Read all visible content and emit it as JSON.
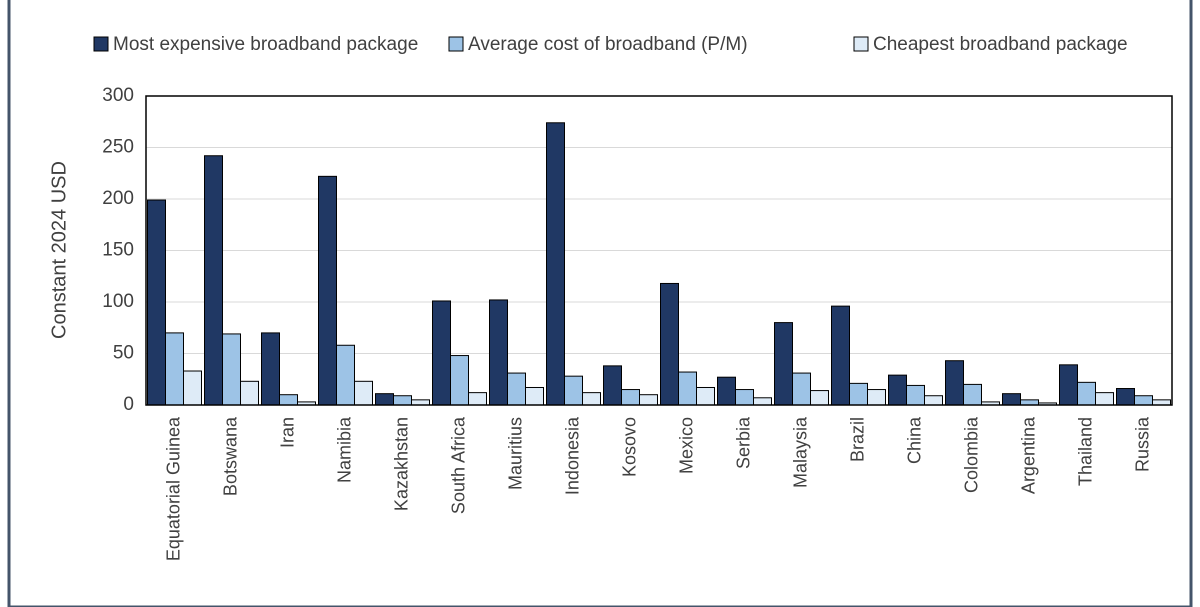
{
  "chart_data": {
    "type": "bar",
    "y_label": "Constant 2024 USD",
    "categories": [
      "Equatorial Guinea",
      "Botswana",
      "Iran",
      "Namibia",
      "Kazakhstan",
      "South Africa",
      "Mauritius",
      "Indonesia",
      "Kosovo",
      "Mexico",
      "Serbia",
      "Malaysia",
      "Brazil",
      "China",
      "Colombia",
      "Argentina",
      "Thailand",
      "Russia"
    ],
    "series": [
      {
        "name": "Most expensive broadband package",
        "color": "#203864",
        "values": [
          199,
          242,
          70,
          222,
          11,
          101,
          102,
          274,
          38,
          118,
          27,
          80,
          96,
          29,
          43,
          11,
          39,
          16
        ]
      },
      {
        "name": "Average cost of broadband (P/M)",
        "color": "#9dc3e6",
        "values": [
          70,
          69,
          10,
          58,
          9,
          48,
          31,
          28,
          15,
          32,
          15,
          31,
          21,
          19,
          20,
          5,
          22,
          9
        ]
      },
      {
        "name": "Cheapest broadband package",
        "color": "#deebf7",
        "values": [
          33,
          23,
          3,
          23,
          5,
          12,
          17,
          12,
          10,
          17,
          7,
          14,
          15,
          9,
          3,
          2,
          12,
          5
        ]
      }
    ],
    "ylim": [
      0,
      300
    ],
    "yticks": [
      0,
      50,
      100,
      150,
      200,
      250,
      300
    ],
    "grid": true,
    "legend": "top"
  }
}
